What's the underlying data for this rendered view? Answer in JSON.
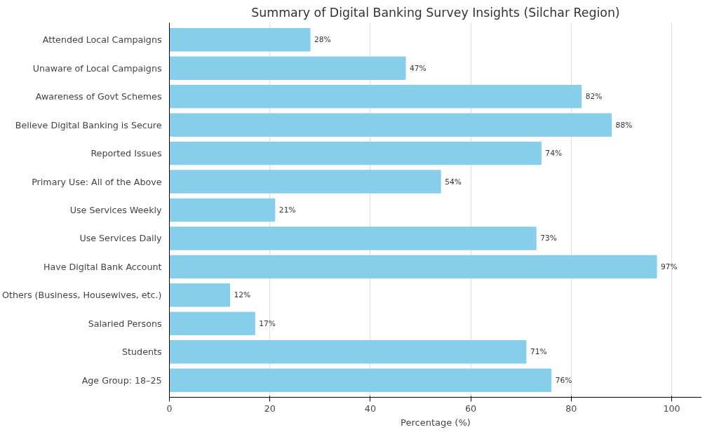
{
  "chart_data": {
    "type": "bar",
    "orientation": "horizontal",
    "title": "Summary of Digital Banking Survey Insights (Silchar Region)",
    "xlabel": "Percentage (%)",
    "categories": [
      "Attended Local Campaigns",
      "Unaware of Local Campaigns",
      "Awareness of Govt Schemes",
      "Believe Digital Banking is Secure",
      "Reported Issues",
      "Primary Use: All of the Above",
      "Use Services Weekly",
      "Use Services Daily",
      "Have Digital Bank Account",
      "Others (Business, Housewives, etc.)",
      "Salaried Persons",
      "Students",
      "Age Group: 18–25"
    ],
    "values": [
      28,
      47,
      82,
      88,
      74,
      54,
      21,
      73,
      97,
      12,
      17,
      71,
      76
    ],
    "value_labels": [
      "28%",
      "47%",
      "82%",
      "88%",
      "74%",
      "54%",
      "21%",
      "73%",
      "97%",
      "12%",
      "17%",
      "71%",
      "76%"
    ],
    "color": "#87ceeb",
    "xlim": [
      0,
      106
    ],
    "xticks": [
      0,
      20,
      40,
      60,
      80,
      100
    ],
    "grid": "x"
  }
}
